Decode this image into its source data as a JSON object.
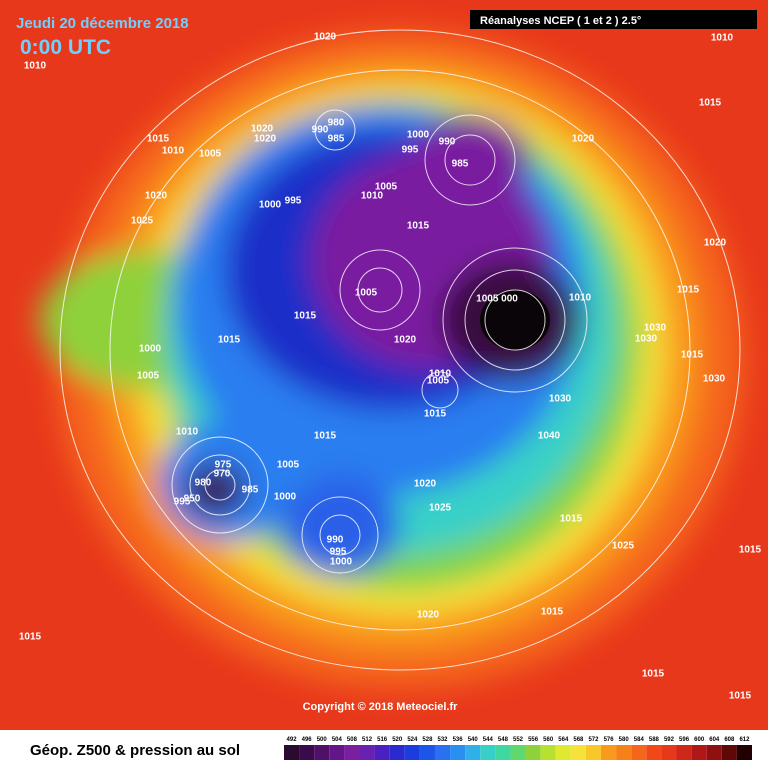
{
  "header": {
    "date": "Jeudi 20 décembre 2018",
    "time": "0:00 UTC",
    "source": "Réanalyses NCEP ( 1 et 2 ) 2.5°"
  },
  "copyright": "Copyright © 2018 Meteociel.fr",
  "legend": {
    "title": "Géop. Z500 & pression au sol",
    "scale": [
      492,
      496,
      500,
      504,
      508,
      512,
      516,
      520,
      524,
      528,
      532,
      536,
      540,
      544,
      548,
      552,
      556,
      560,
      564,
      568,
      572,
      576,
      580,
      584,
      588,
      592,
      596,
      600,
      604,
      608,
      612
    ]
  },
  "pressure_labels": [
    1020,
    1010,
    1010,
    1015,
    1015,
    1010,
    1005,
    1020,
    1020,
    990,
    980,
    985,
    1000,
    995,
    990,
    985,
    1020,
    1020,
    1025,
    1005,
    1010,
    1000,
    995,
    1015,
    1020,
    1015,
    1005,
    "1005 000",
    1010,
    1015,
    1015,
    1030,
    1030,
    1000,
    1020,
    1015,
    1005,
    1010,
    1005,
    1030,
    1030,
    1015,
    1010,
    1040,
    1015,
    975,
    970,
    1005,
    980,
    985,
    950,
    995,
    1000,
    1020,
    1025,
    1015,
    990,
    995,
    1000,
    1025,
    1015,
    1020,
    1015,
    1015,
    1015,
    1015
  ]
}
